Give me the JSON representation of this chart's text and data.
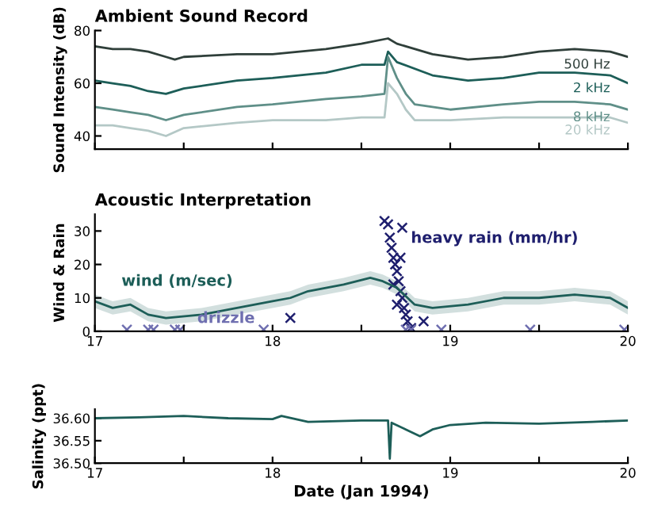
{
  "chart_data": [
    {
      "type": "line",
      "title": "Ambient Sound Record",
      "ylabel": "Sound Intensity (dB)",
      "xlim": [
        17,
        20
      ],
      "ylim": [
        35,
        80
      ],
      "yticks": [
        40,
        60,
        80
      ],
      "xticks": [
        {
          "value": 17,
          "label": null
        },
        {
          "value": 17.5,
          "label": null
        },
        {
          "value": 18,
          "label": null
        },
        {
          "value": 18.5,
          "label": null
        },
        {
          "value": 19,
          "label": null
        },
        {
          "value": 19.5,
          "label": null
        },
        {
          "value": 20,
          "label": null
        }
      ],
      "tick_labels": "y",
      "series": [
        {
          "name": "500 Hz",
          "color": "#2f3f3a",
          "x": [
            17.0,
            17.1,
            17.2,
            17.3,
            17.4,
            17.45,
            17.5,
            17.8,
            18.0,
            18.3,
            18.5,
            18.65,
            18.7,
            18.9,
            19.1,
            19.3,
            19.5,
            19.7,
            19.9,
            20.0
          ],
          "values": [
            74,
            73,
            73,
            72,
            70,
            69,
            70,
            71,
            71,
            73,
            75,
            77,
            75,
            71,
            69,
            70,
            72,
            73,
            72,
            70
          ]
        },
        {
          "name": "2 kHz",
          "color": "#1d5e58",
          "x": [
            17.0,
            17.1,
            17.2,
            17.3,
            17.4,
            17.5,
            17.8,
            18.0,
            18.3,
            18.5,
            18.63,
            18.65,
            18.7,
            18.9,
            19.1,
            19.3,
            19.5,
            19.7,
            19.9,
            20.0
          ],
          "values": [
            61,
            60,
            59,
            57,
            56,
            58,
            61,
            62,
            64,
            67,
            67,
            72,
            68,
            63,
            61,
            62,
            64,
            64,
            63,
            60
          ]
        },
        {
          "name": "8 kHz",
          "color": "#5f8f88",
          "x": [
            17.0,
            17.1,
            17.2,
            17.3,
            17.4,
            17.5,
            17.8,
            18.0,
            18.3,
            18.5,
            18.63,
            18.65,
            18.7,
            18.75,
            18.8,
            19.0,
            19.3,
            19.5,
            19.7,
            19.9,
            20.0
          ],
          "values": [
            51,
            50,
            49,
            48,
            46,
            48,
            51,
            52,
            54,
            55,
            56,
            70,
            62,
            56,
            52,
            50,
            52,
            53,
            53,
            52,
            50
          ]
        },
        {
          "name": "20 kHz",
          "color": "#b4c8c6",
          "x": [
            17.0,
            17.1,
            17.2,
            17.3,
            17.4,
            17.5,
            17.8,
            18.0,
            18.3,
            18.5,
            18.63,
            18.65,
            18.7,
            18.75,
            18.8,
            19.0,
            19.3,
            19.5,
            19.7,
            19.9,
            20.0
          ],
          "values": [
            44,
            44,
            43,
            42,
            40,
            43,
            45,
            46,
            46,
            47,
            47,
            60,
            56,
            50,
            46,
            46,
            47,
            47,
            47,
            47,
            45
          ]
        }
      ]
    },
    {
      "type": "line",
      "title": "Acoustic Interpretation",
      "ylabel": "Wind & Rain",
      "xlim": [
        17,
        20
      ],
      "ylim": [
        0,
        35
      ],
      "yticks": [
        0,
        10,
        20,
        30
      ],
      "xticks": [
        17,
        {
          "value": 17.5,
          "label": null
        },
        18,
        {
          "value": 18.5,
          "label": null
        },
        19,
        {
          "value": 19.5,
          "label": null
        },
        20
      ],
      "series": [
        {
          "name": "wind (m/sec)",
          "color": "#1d5e58",
          "x": [
            17.0,
            17.1,
            17.2,
            17.3,
            17.4,
            17.6,
            17.8,
            18.0,
            18.1,
            18.2,
            18.4,
            18.55,
            18.62,
            18.7,
            18.8,
            18.9,
            19.1,
            19.3,
            19.5,
            19.7,
            19.9,
            20.0
          ],
          "values": [
            9,
            7,
            8,
            5,
            4,
            5,
            7,
            9,
            10,
            12,
            14,
            16,
            15,
            13,
            8,
            7,
            8,
            10,
            10,
            11,
            10,
            7
          ],
          "lower": [
            7,
            5,
            6,
            3,
            2,
            3,
            5,
            7,
            8,
            10,
            12,
            14,
            13,
            11,
            6,
            5,
            6,
            8,
            8,
            9,
            8,
            5
          ],
          "upper": [
            11,
            9,
            10,
            7,
            6,
            7,
            9,
            11,
            12,
            14,
            16,
            18,
            17,
            15,
            10,
            9,
            10,
            12,
            12,
            13,
            12,
            9
          ]
        },
        {
          "name": "heavy rain (mm/hr)",
          "type": "scatter",
          "marker": "cross",
          "color": "#1f1f6e",
          "x": [
            18.1,
            18.63,
            18.65,
            18.73,
            18.66,
            18.67,
            18.68,
            18.69,
            18.7,
            18.71,
            18.72,
            18.72,
            18.68,
            18.73,
            18.74,
            18.7,
            18.75,
            18.76,
            18.78,
            18.85
          ],
          "values": [
            4,
            33,
            32,
            31,
            28,
            25,
            22,
            20,
            18,
            15,
            22,
            12,
            14,
            10,
            7,
            8,
            5,
            3,
            1,
            3
          ]
        },
        {
          "name": "drizzle",
          "type": "scatter",
          "marker": "cross",
          "color": "#6f6fb0",
          "x": [
            17.18,
            17.3,
            17.33,
            17.45,
            17.48,
            17.95,
            18.75,
            18.78,
            18.95,
            19.45,
            19.98
          ],
          "values": [
            0.5,
            0.5,
            0.5,
            0.5,
            0.5,
            0.5,
            0.5,
            0.5,
            0.5,
            0.5,
            0.5
          ]
        }
      ]
    },
    {
      "type": "line",
      "ylabel": "Salinity (ppt)",
      "xlabel": "Date (Jan 1994)",
      "xlim": [
        17,
        20
      ],
      "ylim": [
        36.5,
        36.62
      ],
      "yticks": [
        {
          "value": 36.5,
          "label": "36.50"
        },
        {
          "value": 36.55,
          "label": "36.55"
        },
        {
          "value": 36.6,
          "label": "36.60"
        }
      ],
      "xticks": [
        17,
        {
          "value": 17.5,
          "label": null
        },
        18,
        {
          "value": 18.5,
          "label": null
        },
        19,
        {
          "value": 19.5,
          "label": null
        },
        20
      ],
      "series": [
        {
          "color": "#1d5e58",
          "x": [
            17.0,
            17.25,
            17.5,
            17.75,
            18.0,
            18.05,
            18.2,
            18.5,
            18.65,
            18.66,
            18.67,
            18.75,
            18.83,
            18.9,
            19.0,
            19.2,
            19.5,
            19.8,
            20.0
          ],
          "values": [
            36.6,
            36.602,
            36.605,
            36.6,
            36.598,
            36.605,
            36.592,
            36.595,
            36.595,
            36.51,
            36.59,
            36.575,
            36.56,
            36.575,
            36.585,
            36.59,
            36.588,
            36.592,
            36.595
          ]
        }
      ]
    }
  ]
}
